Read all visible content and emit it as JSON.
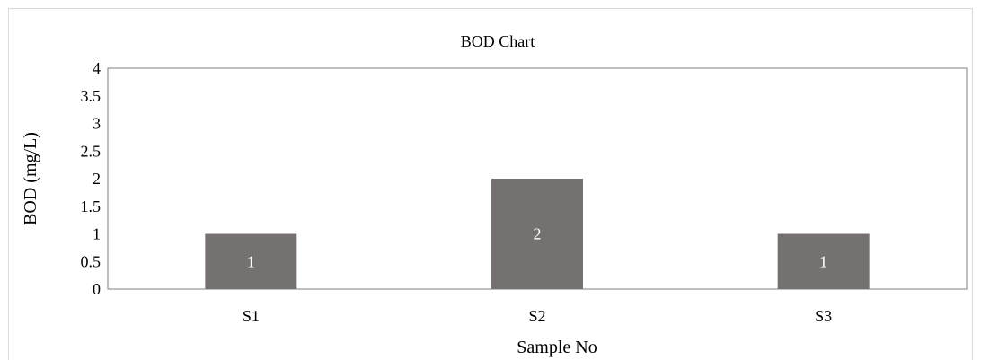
{
  "chart_data": {
    "type": "bar",
    "title": "BOD Chart",
    "xlabel": "Sample No",
    "ylabel": "BOD (mg/L)",
    "categories": [
      "S1",
      "S2",
      "S3"
    ],
    "values": [
      1,
      2,
      1
    ],
    "data_labels": [
      "1",
      "2",
      "1"
    ],
    "ylim": [
      0,
      4
    ],
    "yticks": [
      "0",
      "0.5",
      "1",
      "1.5",
      "2",
      "2.5",
      "3",
      "3.5",
      "4"
    ],
    "grid": false,
    "legend": "none",
    "colors": {
      "bar": "#767171",
      "axis": "#7f7f7f",
      "label_on_bar": "#ffffff",
      "frame": "#d9d9d9"
    }
  }
}
